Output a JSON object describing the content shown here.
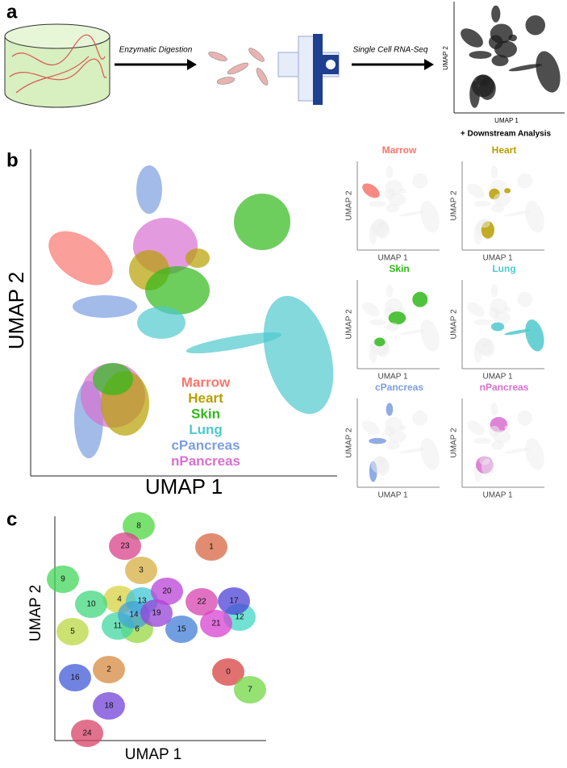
{
  "panel_a": {
    "label": "a",
    "steps": [
      "Enzymatic Digestion",
      "Single Cell RNA-Seq"
    ],
    "x_label": "UMAP 1",
    "y_label": "UMAP 2",
    "caption": "+ Downstream Analysis"
  },
  "panel_b": {
    "label": "b",
    "x_label": "UMAP 1",
    "y_label": "UMAP 2",
    "groups": [
      {
        "name": "Marrow",
        "color": "#f8766d"
      },
      {
        "name": "Heart",
        "color": "#b79f00"
      },
      {
        "name": "Skin",
        "color": "#2fb919"
      },
      {
        "name": "Lung",
        "color": "#4fc9cd"
      },
      {
        "name": "cPancreas",
        "color": "#7b9ee0"
      },
      {
        "name": "nPancreas",
        "color": "#d86fd0"
      }
    ]
  },
  "panel_c": {
    "label": "c",
    "x_label": "UMAP 1",
    "y_label": "UMAP 2",
    "clusters": [
      "0",
      "1",
      "2",
      "3",
      "4",
      "5",
      "6",
      "7",
      "8",
      "9",
      "10",
      "11",
      "12",
      "13",
      "14",
      "15",
      "16",
      "17",
      "18",
      "19",
      "20",
      "21",
      "22",
      "23",
      "24"
    ]
  }
}
